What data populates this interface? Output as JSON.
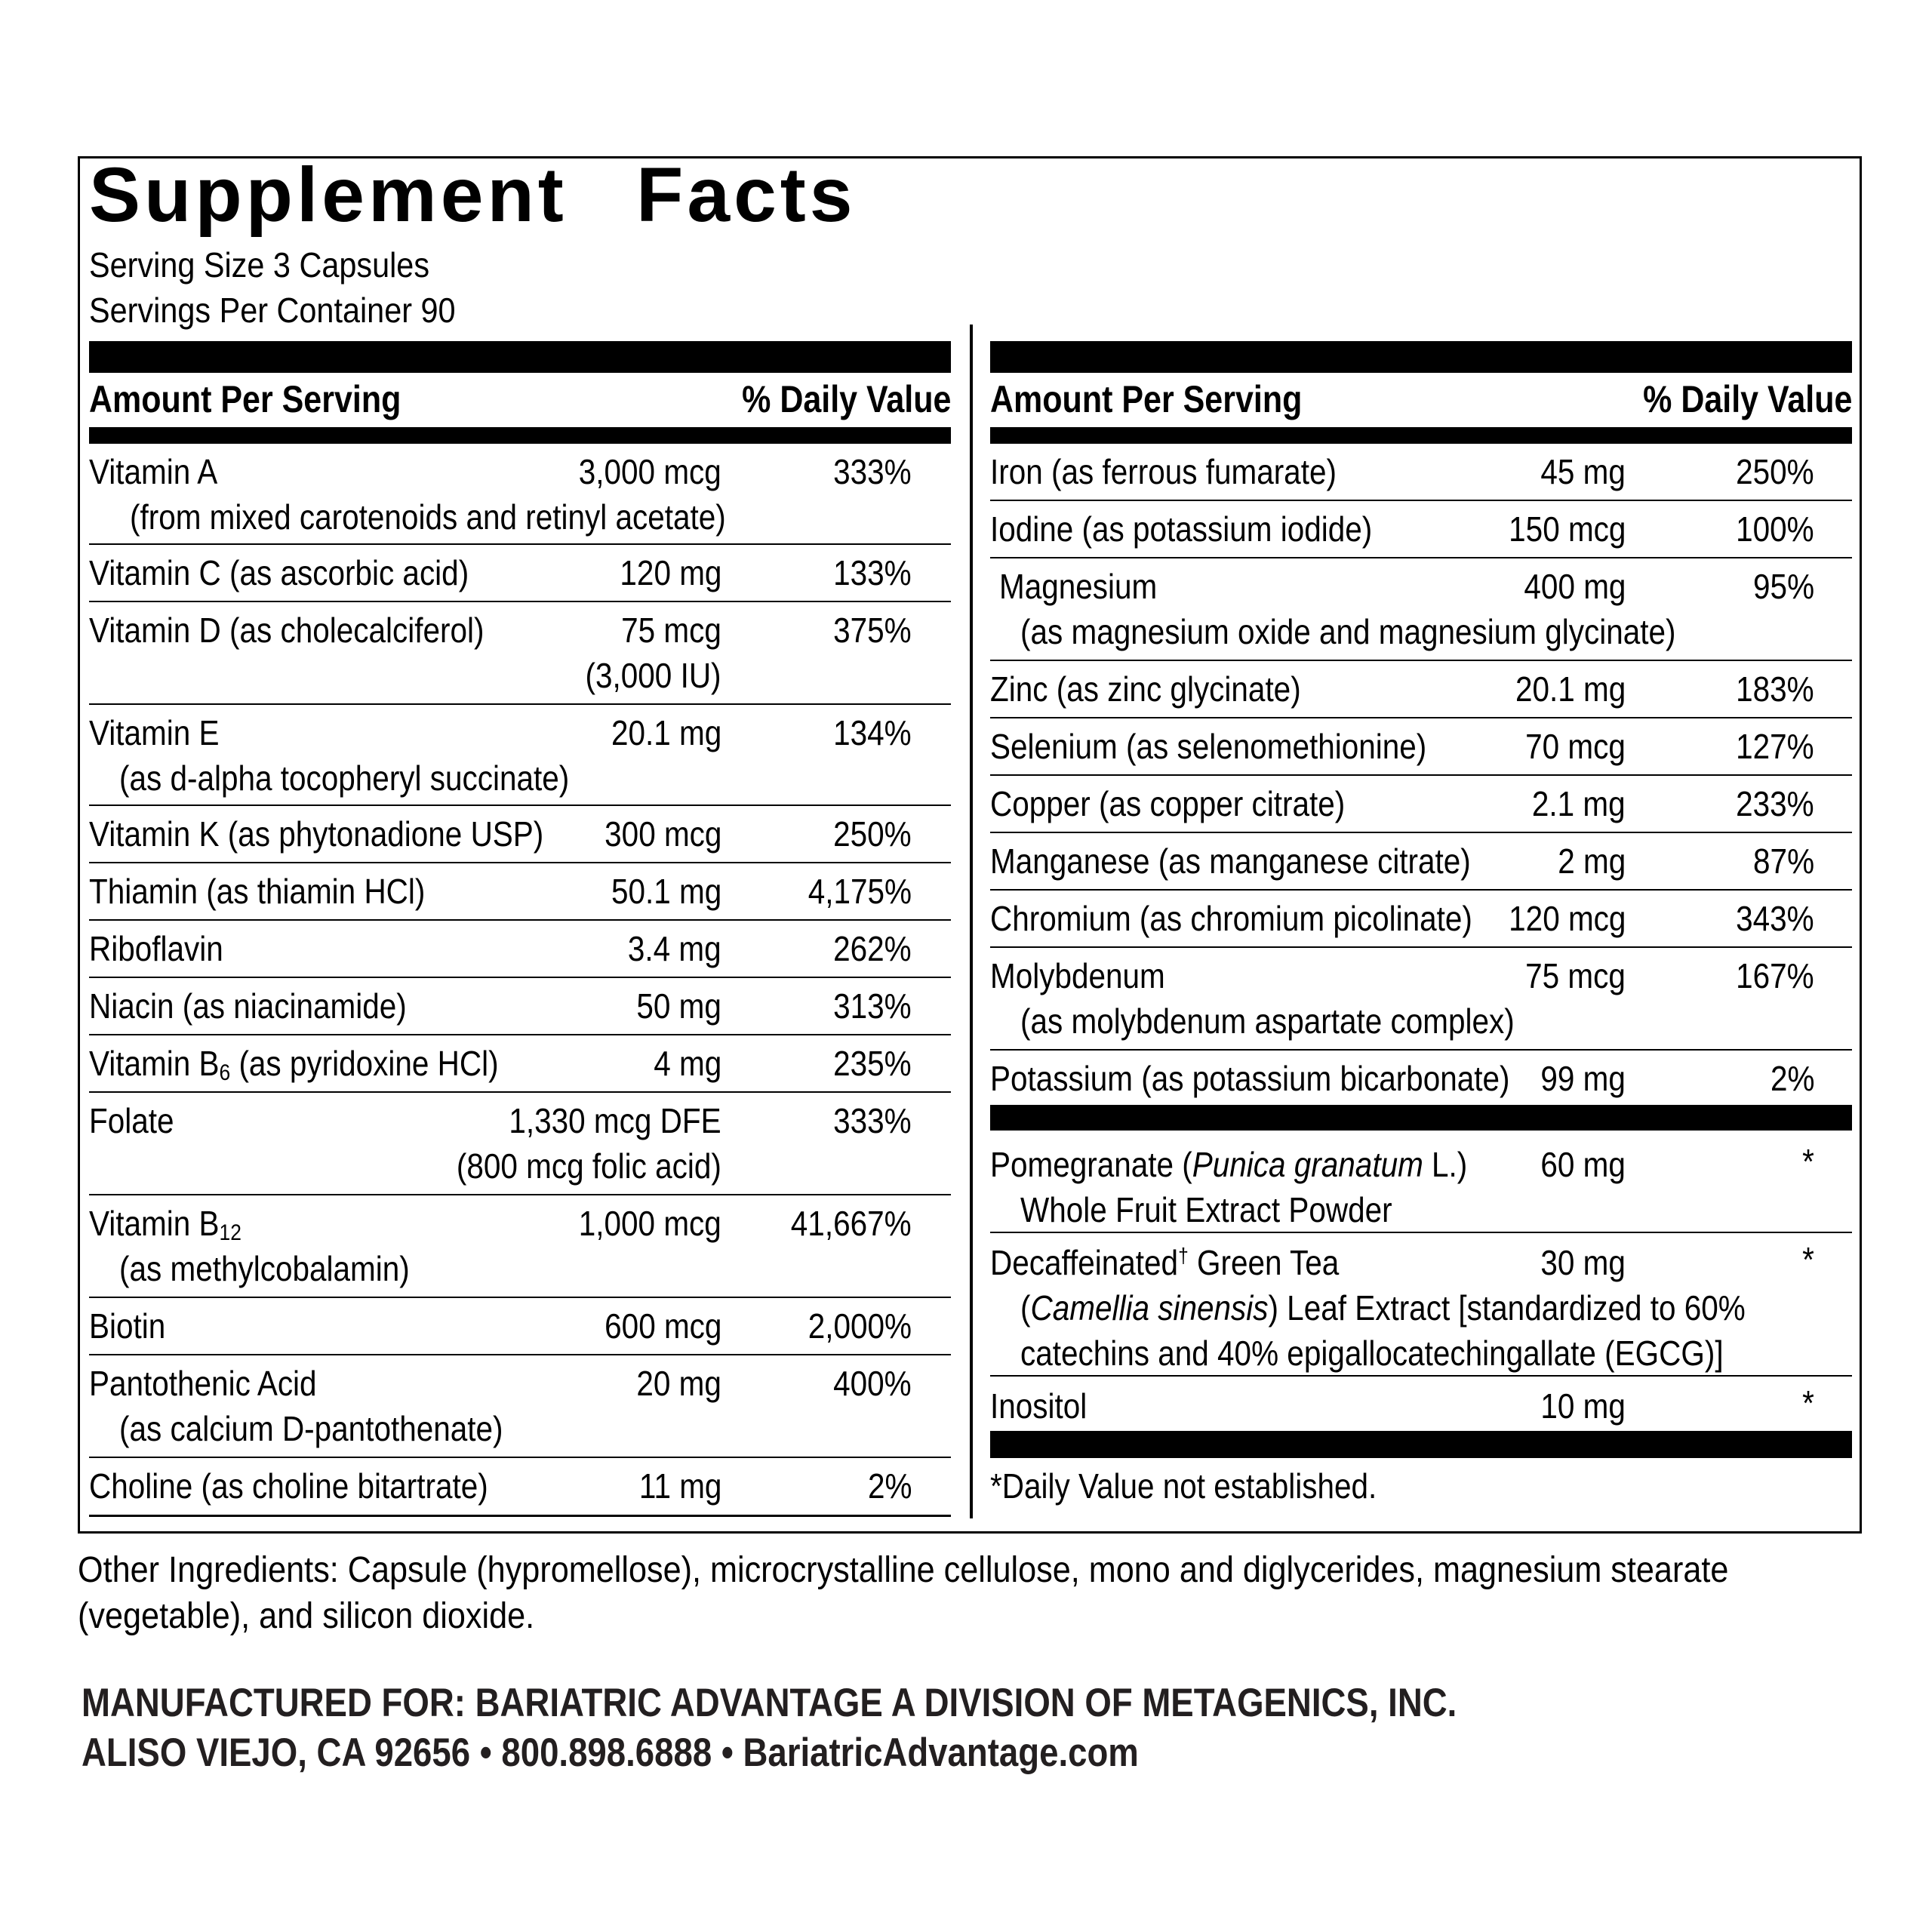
{
  "title": "Supplement Facts",
  "serving_size": "Serving Size 3 Capsules",
  "servings_per_container": "Servings Per Container 90",
  "header": {
    "amount": "Amount Per Serving",
    "dv": "% Daily Value"
  },
  "left_rows": [
    {
      "name": "Vitamin A",
      "amount": "3,000 mcg",
      "dv": "333%",
      "sub": "(from mixed carotenoids and retinyl acetate)"
    },
    {
      "name": "Vitamin C (as ascorbic acid)",
      "amount": "120 mg",
      "dv": "133%"
    },
    {
      "name": "Vitamin D (as cholecalciferol)",
      "amount": "75 mcg",
      "dv": "375%",
      "amount2": "(3,000 IU)"
    },
    {
      "name": "Vitamin E",
      "amount": "20.1 mg",
      "dv": "134%",
      "sub": "(as d-alpha tocopheryl succinate)"
    },
    {
      "name": "Vitamin K (as phytonadione USP)",
      "amount": "300 mcg",
      "dv": "250%"
    },
    {
      "name": "Thiamin (as thiamin HCl)",
      "amount": "50.1 mg",
      "dv": "4,175%"
    },
    {
      "name": "Riboflavin",
      "amount": "3.4 mg",
      "dv": "262%"
    },
    {
      "name": "Niacin (as niacinamide)",
      "amount": "50 mg",
      "dv": "313%"
    },
    {
      "name_pre": "Vitamin B",
      "name_sub": "6",
      "name_post": " (as pyridoxine HCl)",
      "amount": "4 mg",
      "dv": "235%"
    },
    {
      "name": "Folate",
      "amount": "1,330 mcg DFE",
      "dv": "333%",
      "amount2": "(800 mcg folic acid)"
    },
    {
      "name_pre": "Vitamin B",
      "name_sub": "12",
      "amount": "1,000 mcg",
      "dv": "41,667%",
      "sub": "(as methylcobalamin)"
    },
    {
      "name": "Biotin",
      "amount": "600 mcg",
      "dv": "2,000%"
    },
    {
      "name": "Pantothenic Acid",
      "amount": "20 mg",
      "dv": "400%",
      "sub": "(as calcium D-pantothenate)"
    },
    {
      "name": "Choline (as choline bitartrate)",
      "amount": "11 mg",
      "dv": "2%"
    }
  ],
  "right_rows": [
    {
      "name": "Iron (as ferrous fumarate)",
      "amount": "45 mg",
      "dv": "250%"
    },
    {
      "name": "Iodine (as potassium iodide)",
      "amount": "150 mcg",
      "dv": "100%"
    },
    {
      "name": "Magnesium",
      "amount": "400 mg",
      "dv": "95%",
      "sub": "(as magnesium oxide and magnesium glycinate)"
    },
    {
      "name": "Zinc (as zinc glycinate)",
      "amount": "20.1 mg",
      "dv": "183%"
    },
    {
      "name": "Selenium (as selenomethionine)",
      "amount": "70 mcg",
      "dv": "127%"
    },
    {
      "name": "Copper (as copper citrate)",
      "amount": "2.1 mg",
      "dv": "233%"
    },
    {
      "name": "Manganese (as manganese citrate)",
      "amount": "2 mg",
      "dv": "87%"
    },
    {
      "name": "Chromium (as chromium picolinate)",
      "amount": "120 mcg",
      "dv": "343%"
    },
    {
      "name": "Molybdenum",
      "amount": "75 mcg",
      "dv": "167%",
      "sub": "(as molybdenum aspartate complex)"
    },
    {
      "name": "Potassium (as potassium bicarbonate)",
      "amount": "99 mg",
      "dv": "2%"
    }
  ],
  "right_extra_rows": [
    {
      "name_pre": "Pomegranate (",
      "name_italic": "Punica granatum",
      "name_post": " L.)",
      "amount": "60 mg",
      "dv": "*",
      "sub": "Whole Fruit Extract Powder"
    },
    {
      "name_pre": "Decaffeinated",
      "name_sup": "†",
      "name_post": " Green Tea",
      "amount": "30 mg",
      "dv": "*",
      "sub_pre": "(",
      "sub_italic": "Camellia sinensis",
      "sub_post": ") Leaf Extract [standardized to 60%",
      "sub2": "catechins and 40% epigallocatechingallate (EGCG)]"
    },
    {
      "name": "Inositol",
      "amount": "10 mg",
      "dv": "*"
    }
  ],
  "footnote": "*Daily Value not established.",
  "other_ingredients": "Other Ingredients: Capsule (hypromellose), microcrystalline cellulose, mono and diglycerides, magnesium stearate (vegetable), and silicon dioxide.",
  "manufacturer": {
    "line1": "MANUFACTURED FOR: BARIATRIC ADVANTAGE A DIVISION OF METAGENICS, INC.",
    "line2": "ALISO VIEJO, CA 92656 • 800.898.6888 • BariatricAdvantage.com"
  }
}
